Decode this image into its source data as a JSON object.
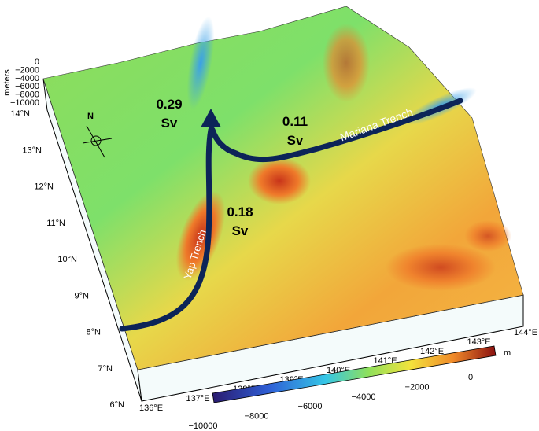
{
  "map": {
    "depth_axis": {
      "label": "meters",
      "ticks": [
        "0",
        "−2000",
        "−4000",
        "−6000",
        "−8000",
        "−10000"
      ]
    },
    "latitudes": [
      "6°N",
      "7°N",
      "8°N",
      "9°N",
      "10°N",
      "11°N",
      "12°N",
      "13°N",
      "14°N"
    ],
    "longitudes": [
      "136°E",
      "137°E",
      "138°E",
      "139°E",
      "140°E",
      "141°E",
      "142°E",
      "143°E",
      "144°E"
    ],
    "colorbar": {
      "unit": "m",
      "ticks": [
        "−10000",
        "−8000",
        "−6000",
        "−4000",
        "−2000",
        "0"
      ]
    },
    "compass": "N",
    "transports": [
      {
        "value": "0.29",
        "unit": "Sv"
      },
      {
        "value": "0.11",
        "unit": "Sv"
      },
      {
        "value": "0.18",
        "unit": "Sv"
      }
    ],
    "trenches": {
      "mariana": "Mariana Trench",
      "yap": "Yap Trench"
    }
  }
}
